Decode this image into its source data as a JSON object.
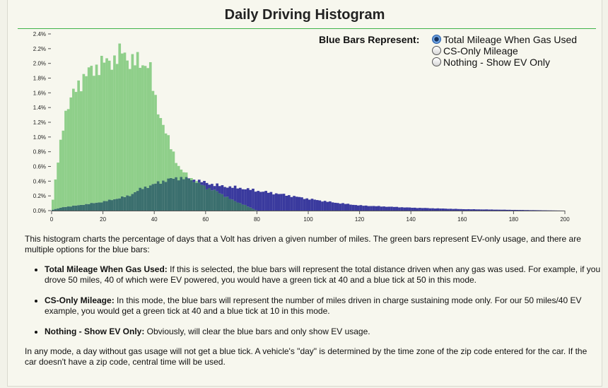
{
  "page": {
    "title": "Daily Driving Histogram"
  },
  "legend": {
    "label": "Blue Bars Represent:",
    "options": [
      {
        "label": "Total Mileage When Gas Used",
        "selected": true
      },
      {
        "label": "CS-Only Mileage",
        "selected": false
      },
      {
        "label": "Nothing - Show EV Only",
        "selected": false
      }
    ]
  },
  "description": {
    "intro": "This histogram charts the percentage of days that a Volt has driven a given number of miles. The green bars represent EV-only usage, and there are multiple options for the blue bars:",
    "items": [
      {
        "lead": "Total Mileage When Gas Used:",
        "text": " If this is selected, the blue bars will represent the total distance driven when any gas was used. For example, if you drove 50 miles, 40 of which were EV powered, you would have a green tick at 40 and a blue tick at 50 in this mode."
      },
      {
        "lead": "CS-Only Mileage:",
        "text": " In this mode, the blue bars will represent the number of miles driven in charge sustaining mode only. For our 50 miles/40 EV example, you would get a green tick at 40 and a blue tick at 10 in this mode."
      },
      {
        "lead": "Nothing - Show EV Only:",
        "text": " Obviously, will clear the blue bars and only show EV usage."
      }
    ],
    "closing": "In any mode, a day without gas usage will not get a blue tick. A vehicle's \"day\" is determined by the time zone of the zip code entered for the car. If the car doesn't have a zip code, central time will be used."
  },
  "colors": {
    "green": "#8fcf8a",
    "blue": "#3a3a9e",
    "overlap": "#3b6f6e",
    "accent": "#3fb34a"
  },
  "chart_data": {
    "type": "bar",
    "xlim": [
      0,
      200
    ],
    "ylim": [
      0,
      2.4
    ],
    "x_ticks": [
      0,
      20,
      40,
      60,
      80,
      100,
      120,
      140,
      160,
      180,
      200
    ],
    "y_ticks": [
      "0.0%",
      "0.2%",
      "0.4%",
      "0.6%",
      "0.8%",
      "1.0%",
      "1.2%",
      "1.4%",
      "1.6%",
      "1.8%",
      "2.0%",
      "2.2%",
      "2.4%"
    ],
    "grid": false,
    "series": [
      {
        "key": "ev",
        "x": [
          0,
          5,
          10,
          15,
          20,
          25,
          28,
          30,
          35,
          38,
          40,
          45,
          50,
          55,
          60,
          65,
          70,
          75,
          80
        ],
        "values": [
          0.02,
          1.3,
          1.7,
          1.9,
          2.0,
          2.06,
          2.17,
          2.04,
          2.0,
          2.0,
          1.55,
          1.0,
          0.56,
          0.42,
          0.32,
          0.25,
          0.15,
          0.08,
          0.0
        ]
      },
      {
        "key": "gas",
        "x": [
          0,
          5,
          10,
          20,
          30,
          35,
          40,
          45,
          50,
          55,
          60,
          65,
          70,
          75,
          80,
          90,
          100,
          110,
          120,
          140,
          160,
          180,
          200
        ],
        "values": [
          0.01,
          0.05,
          0.07,
          0.12,
          0.2,
          0.3,
          0.36,
          0.42,
          0.45,
          0.42,
          0.38,
          0.34,
          0.32,
          0.3,
          0.27,
          0.22,
          0.16,
          0.11,
          0.07,
          0.04,
          0.02,
          0.01,
          0.0
        ]
      }
    ]
  }
}
